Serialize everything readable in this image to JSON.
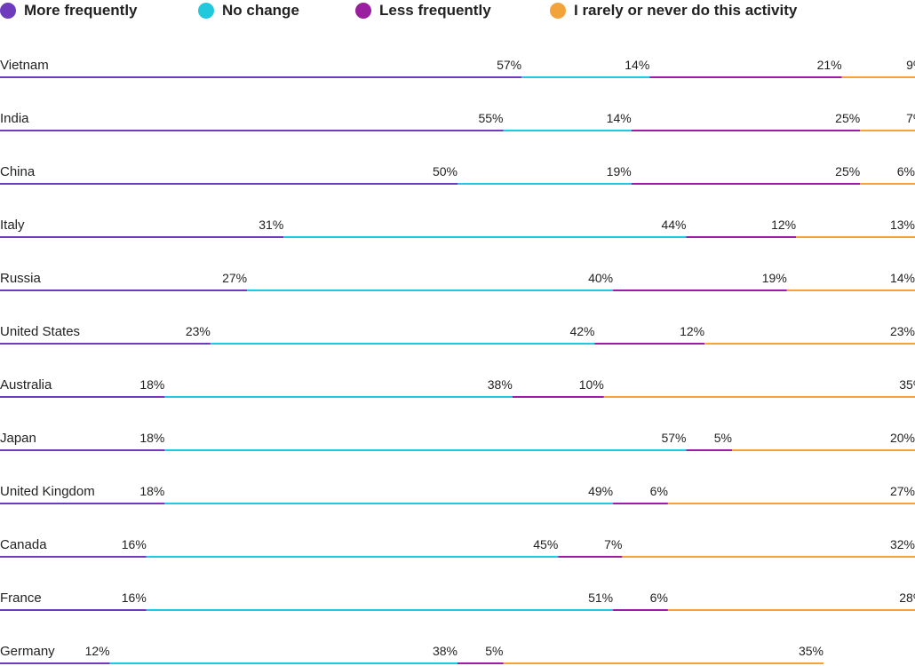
{
  "colors": {
    "more": "#6f3bbd",
    "nochange": "#22c8dc",
    "less": "#9b1ea0",
    "rarely": "#f2a33a"
  },
  "legend": [
    {
      "key": "more",
      "label": "More frequently"
    },
    {
      "key": "nochange",
      "label": "No change"
    },
    {
      "key": "less",
      "label": "Less frequently"
    },
    {
      "key": "rarely",
      "label": "I rarely or never do this activity"
    }
  ],
  "chart_data": {
    "type": "bar",
    "orientation": "horizontal",
    "stacked": true,
    "value_suffix": "%",
    "categories": [
      "Vietnam",
      "India",
      "China",
      "Italy",
      "Russia",
      "United States",
      "Australia",
      "Japan",
      "United Kingdom",
      "Canada",
      "France",
      "Germany"
    ],
    "series": [
      {
        "name": "More frequently",
        "values": [
          57,
          55,
          50,
          31,
          27,
          23,
          18,
          18,
          18,
          16,
          16,
          12
        ]
      },
      {
        "name": "No change",
        "values": [
          14,
          14,
          19,
          44,
          40,
          42,
          38,
          57,
          49,
          45,
          51,
          38
        ]
      },
      {
        "name": "Less frequently",
        "values": [
          21,
          25,
          25,
          12,
          19,
          12,
          10,
          5,
          6,
          7,
          6,
          5
        ]
      },
      {
        "name": "I rarely or never do this activity",
        "values": [
          9,
          7,
          6,
          13,
          14,
          23,
          35,
          20,
          27,
          32,
          28,
          35
        ]
      }
    ],
    "legend_position": "top-left",
    "grid": false
  }
}
